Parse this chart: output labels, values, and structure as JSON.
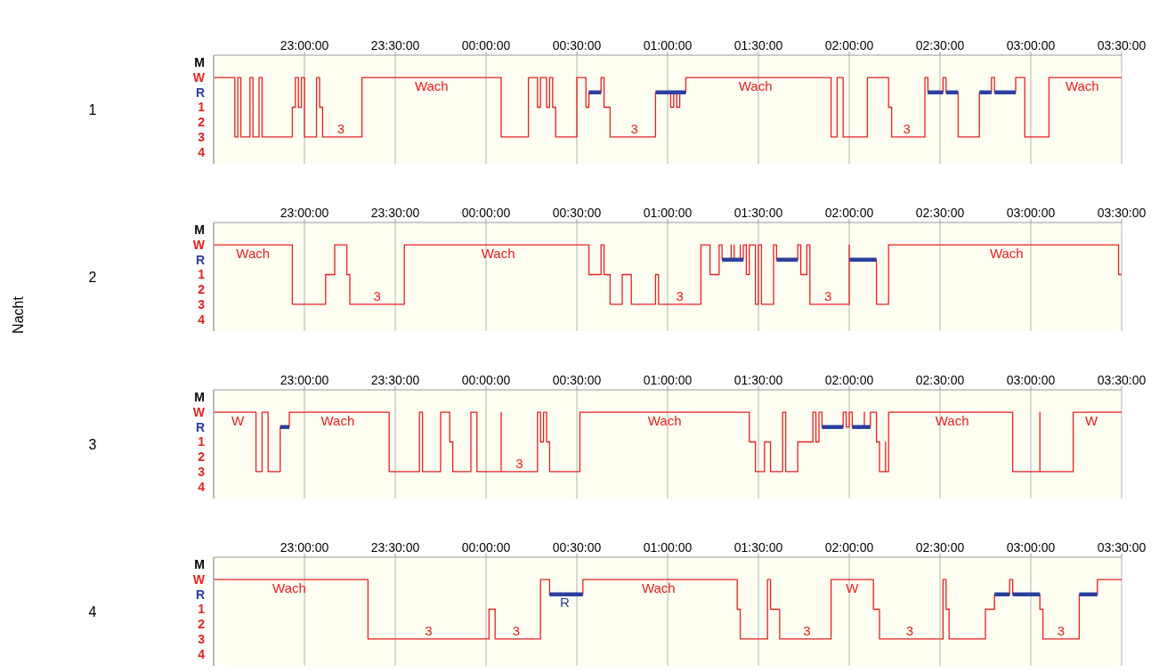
{
  "chart_data": [
    {
      "type": "step",
      "ylabel": "1",
      "xlim": [
        "2000-01-01T22:30",
        "2000-01-02T03:30"
      ],
      "xticks": [
        {
          "value": "2000-01-01T23:00",
          "label": "23:00:00"
        },
        {
          "value": "2000-01-01T23:30",
          "label": "23:30:00"
        },
        {
          "value": "2000-01-02T00:00",
          "label": "00:00:00"
        },
        {
          "value": "2000-01-02T00:30",
          "label": "00:30:00"
        },
        {
          "value": "2000-01-02T01:00",
          "label": "01:00:00"
        },
        {
          "value": "2000-01-02T01:30",
          "label": "01:30:00"
        },
        {
          "value": "2000-01-02T02:00",
          "label": "02:00:00"
        },
        {
          "value": "2000-01-02T02:30",
          "label": "02:30:00"
        },
        {
          "value": "2000-01-02T03:00",
          "label": "03:00:00"
        },
        {
          "value": "2000-01-02T03:30",
          "label": "03:30:00"
        }
      ],
      "ylim": [
        4.8,
        -2.5
      ],
      "yticks": [
        {
          "value": -2,
          "label": "M"
        },
        {
          "value": -1,
          "label": "W"
        },
        {
          "value": 0,
          "label": "R"
        },
        1,
        2,
        3,
        4
      ],
      "grid": "x",
      "series": [
        {
          "color": "#e82020",
          "x": [
            "2000-01-01T22:30",
            "2000-01-01T22:37",
            "2000-01-01T22:38",
            "2000-01-01T22:39",
            "2000-01-01T22:42",
            "2000-01-01T22:43",
            "2000-01-01T22:45",
            "2000-01-01T22:46",
            "2000-01-01T22:56",
            "2000-01-01T22:57",
            "2000-01-01T22:58",
            "2000-01-01T22:59",
            "2000-01-01T23:00",
            "2000-01-01T23:04",
            "2000-01-01T23:05",
            "2000-01-01T23:06",
            "2000-01-01T23:19",
            "2000-01-02T00:05",
            "2000-01-02T00:14",
            "2000-01-02T00:17",
            "2000-01-02T00:18",
            "2000-01-02T00:20",
            "2000-01-02T00:21",
            "2000-01-02T00:22",
            "2000-01-02T00:23",
            "2000-01-02T00:30",
            "2000-01-02T00:33",
            "2000-01-02T00:34",
            "2000-01-02T00:38",
            "2000-01-02T00:39",
            "2000-01-02T00:41",
            "2000-01-02T00:56",
            "2000-01-02T01:01",
            "2000-01-02T01:02",
            "2000-01-02T01:03",
            "2000-01-02T01:04",
            "2000-01-02T01:06",
            "2000-01-02T01:54",
            "2000-01-02T01:56",
            "2000-01-02T01:58",
            "2000-01-02T02:06",
            "2000-01-02T02:13",
            "2000-01-02T02:14",
            "2000-01-02T02:25",
            "2000-01-02T02:26",
            "2000-01-02T02:31",
            "2000-01-02T02:32",
            "2000-01-02T02:36",
            "2000-01-02T02:43",
            "2000-01-02T02:47",
            "2000-01-02T02:48",
            "2000-01-02T02:55",
            "2000-01-02T02:58",
            "2000-01-02T03:06",
            "2000-01-02T03:30"
          ],
          "values": [
            -1,
            3,
            -1,
            3,
            -1,
            3,
            -1,
            3,
            1,
            -1,
            1,
            -1,
            3,
            -1,
            1,
            3,
            -1,
            3,
            -1,
            1,
            -1,
            1,
            -1,
            1,
            3,
            -1,
            1,
            0,
            -1,
            1,
            3,
            0,
            1,
            0,
            1,
            0,
            -1,
            3,
            -1,
            3,
            -1,
            1,
            3,
            -1,
            0,
            -1,
            0,
            3,
            0,
            -1,
            0,
            -1,
            3,
            -1,
            -1
          ]
        },
        {
          "type": "line",
          "color": "#2b3fa0",
          "x": [
            "2000-01-02T00:34",
            "2000-01-02T00:38"
          ],
          "values": [
            0,
            0
          ]
        },
        {
          "type": "line",
          "color": "#2b3fa0",
          "x": [
            "2000-01-02T00:56",
            "2000-01-02T01:06"
          ],
          "values": [
            0,
            0
          ]
        },
        {
          "type": "line",
          "color": "#2b3fa0",
          "x": [
            "2000-01-02T02:26",
            "2000-01-02T02:31"
          ],
          "values": [
            0,
            0
          ]
        },
        {
          "type": "line",
          "color": "#2b3fa0",
          "x": [
            "2000-01-02T02:32",
            "2000-01-02T02:36"
          ],
          "values": [
            0,
            0
          ]
        },
        {
          "type": "line",
          "color": "#2b3fa0",
          "x": [
            "2000-01-02T02:43",
            "2000-01-02T02:47"
          ],
          "values": [
            0,
            0
          ]
        },
        {
          "type": "line",
          "color": "#2b3fa0",
          "x": [
            "2000-01-02T02:48",
            "2000-01-02T02:55"
          ],
          "values": [
            0,
            0
          ]
        }
      ],
      "annotations": [
        {
          "text": "Wach",
          "x": "2000-01-01T23:42",
          "y": -1
        },
        {
          "text": "3",
          "x": "2000-01-01T23:12",
          "y": 3
        },
        {
          "text": "3",
          "x": "2000-01-02T00:49",
          "y": 3
        },
        {
          "text": "Wach",
          "x": "2000-01-02T01:29",
          "y": -1
        },
        {
          "text": "3",
          "x": "2000-01-02T02:19",
          "y": 3
        },
        {
          "text": "Wach",
          "x": "2000-01-02T03:17",
          "y": -1
        }
      ]
    },
    {
      "type": "step",
      "ylabel": "2",
      "xlim": [
        "2000-01-01T22:30",
        "2000-01-02T03:30"
      ],
      "xticks": [
        {
          "value": "2000-01-01T23:00",
          "label": "23:00:00"
        },
        {
          "value": "2000-01-01T23:30",
          "label": "23:30:00"
        },
        {
          "value": "2000-01-02T00:00",
          "label": "00:00:00"
        },
        {
          "value": "2000-01-02T00:30",
          "label": "00:30:00"
        },
        {
          "value": "2000-01-02T01:00",
          "label": "01:00:00"
        },
        {
          "value": "2000-01-02T01:30",
          "label": "01:30:00"
        },
        {
          "value": "2000-01-02T02:00",
          "label": "02:00:00"
        },
        {
          "value": "2000-01-02T02:30",
          "label": "02:30:00"
        },
        {
          "value": "2000-01-02T03:00",
          "label": "03:00:00"
        },
        {
          "value": "2000-01-02T03:30",
          "label": "03:30:00"
        }
      ],
      "ylim": [
        4.8,
        -2.5
      ],
      "yticks": [
        {
          "value": -2,
          "label": "M"
        },
        {
          "value": -1,
          "label": "W"
        },
        {
          "value": 0,
          "label": "R"
        },
        1,
        2,
        3,
        4
      ],
      "grid": "x",
      "series": [
        {
          "color": "#e82020",
          "x": [
            "2000-01-01T22:30",
            "2000-01-01T22:56",
            "2000-01-01T23:07",
            "2000-01-01T23:10",
            "2000-01-01T23:14",
            "2000-01-01T23:15",
            "2000-01-01T23:33",
            "2000-01-02T00:34",
            "2000-01-02T00:38",
            "2000-01-02T00:39",
            "2000-01-02T00:41",
            "2000-01-02T00:45",
            "2000-01-02T00:48",
            "2000-01-02T00:56",
            "2000-01-02T00:57",
            "2000-01-02T01:11",
            "2000-01-02T01:14",
            "2000-01-02T01:17",
            "2000-01-02T01:18",
            "2000-01-02T01:21",
            "2000-01-02T01:21",
            "2000-01-02T01:22",
            "2000-01-02T01:22",
            "2000-01-02T01:24",
            "2000-01-02T01:24",
            "2000-01-02T01:25",
            "2000-01-02T01:26",
            "2000-01-02T01:27",
            "2000-01-02T01:29",
            "2000-01-02T01:30",
            "2000-01-02T01:31",
            "2000-01-02T01:35",
            "2000-01-02T01:36",
            "2000-01-02T01:43",
            "2000-01-02T01:44",
            "2000-01-02T01:46",
            "2000-01-02T01:47",
            "2000-01-02T02:00",
            "2000-01-02T02:00",
            "2000-01-02T02:09",
            "2000-01-02T02:13",
            "2000-01-02T03:29",
            "2000-01-02T03:30"
          ],
          "values": [
            -1,
            3,
            1,
            -1,
            1,
            3,
            -1,
            1,
            -1,
            1,
            3,
            1,
            3,
            1,
            3,
            -1,
            1,
            -1,
            0,
            -1,
            0,
            -1,
            0,
            -1,
            0,
            -1,
            1,
            -1,
            3,
            -1,
            3,
            -1,
            0,
            -1,
            1,
            -1,
            3,
            -1,
            0,
            3,
            -1,
            1,
            1
          ]
        },
        {
          "type": "line",
          "color": "#2b3fa0",
          "x": [
            "2000-01-02T01:18",
            "2000-01-02T01:25"
          ],
          "values": [
            0,
            0
          ]
        },
        {
          "type": "line",
          "color": "#2b3fa0",
          "x": [
            "2000-01-02T01:36",
            "2000-01-02T01:43"
          ],
          "values": [
            0,
            0
          ]
        },
        {
          "type": "line",
          "color": "#2b3fa0",
          "x": [
            "2000-01-02T02:00",
            "2000-01-02T02:09"
          ],
          "values": [
            0,
            0
          ]
        }
      ],
      "annotations": [
        "Nacht",
        {
          "text": "Wach",
          "x": "2000-01-01T22:43",
          "y": -1
        },
        {
          "text": "3",
          "x": "2000-01-01T23:24",
          "y": 3
        },
        {
          "text": "Wach",
          "x": "2000-01-02T00:04",
          "y": -1
        },
        {
          "text": "3",
          "x": "2000-01-02T01:04",
          "y": 3
        },
        {
          "text": "3",
          "x": "2000-01-02T01:53",
          "y": 3
        },
        {
          "text": "Wach",
          "x": "2000-01-02T02:52",
          "y": -1
        }
      ]
    },
    {
      "type": "step",
      "ylabel": "3",
      "xlim": [
        "2000-01-01T22:30",
        "2000-01-02T03:30"
      ],
      "xticks": [
        {
          "value": "2000-01-01T23:00",
          "label": "23:00:00"
        },
        {
          "value": "2000-01-01T23:30",
          "label": "23:30:00"
        },
        {
          "value": "2000-01-02T00:00",
          "label": "00:00:00"
        },
        {
          "value": "2000-01-02T00:30",
          "label": "00:30:00"
        },
        {
          "value": "2000-01-02T01:00",
          "label": "01:00:00"
        },
        {
          "value": "2000-01-02T01:30",
          "label": "01:30:00"
        },
        {
          "value": "2000-01-02T02:00",
          "label": "02:00:00"
        },
        {
          "value": "2000-01-02T02:30",
          "label": "02:30:00"
        },
        {
          "value": "2000-01-02T03:00",
          "label": "03:00:00"
        },
        {
          "value": "2000-01-02T03:30",
          "label": "03:30:00"
        }
      ],
      "ylim": [
        4.8,
        -2.5
      ],
      "yticks": [
        {
          "value": -2,
          "label": "M"
        },
        {
          "value": -1,
          "label": "W"
        },
        {
          "value": 0,
          "label": "R"
        },
        1,
        2,
        3,
        4
      ],
      "grid": "x",
      "series": [
        {
          "color": "#e82020",
          "x": [
            "2000-01-01T22:30",
            "2000-01-01T22:44",
            "2000-01-01T22:46",
            "2000-01-01T22:48",
            "2000-01-01T22:52",
            "2000-01-01T22:55",
            "2000-01-01T23:28",
            "2000-01-01T23:38",
            "2000-01-01T23:39",
            "2000-01-01T23:45",
            "2000-01-01T23:48",
            "2000-01-01T23:49",
            "2000-01-01T23:55",
            "2000-01-01T23:57",
            "2000-01-02T00:05",
            "2000-01-02T00:05",
            "2000-01-02T00:17",
            "2000-01-02T00:18",
            "2000-01-02T00:19",
            "2000-01-02T00:20",
            "2000-01-02T00:21",
            "2000-01-02T00:31",
            "2000-01-02T01:27",
            "2000-01-02T01:29",
            "2000-01-02T01:32",
            "2000-01-02T01:34",
            "2000-01-02T01:38",
            "2000-01-02T01:39",
            "2000-01-02T01:43",
            "2000-01-02T01:48",
            "2000-01-02T01:49",
            "2000-01-02T01:50",
            "2000-01-02T01:51",
            "2000-01-02T01:58",
            "2000-01-02T01:59",
            "2000-01-02T02:00",
            "2000-01-02T02:01",
            "2000-01-02T02:05",
            "2000-01-02T02:05",
            "2000-01-02T02:07",
            "2000-01-02T02:09",
            "2000-01-02T02:10",
            "2000-01-02T02:12",
            "2000-01-02T02:12",
            "2000-01-02T02:13",
            "2000-01-02T02:54",
            "2000-01-02T03:03",
            "2000-01-02T03:03",
            "2000-01-02T03:14",
            "2000-01-02T03:30"
          ],
          "values": [
            -1,
            3,
            -1,
            3,
            0,
            -1,
            3,
            -1,
            3,
            -1,
            1,
            3,
            -1,
            3,
            -1,
            3,
            -1,
            1,
            -1,
            1,
            3,
            -1,
            1,
            3,
            1,
            3,
            -1,
            3,
            1,
            -1,
            1,
            -1,
            0,
            -1,
            0,
            -1,
            0,
            -1,
            0,
            -1,
            1,
            3,
            1,
            3,
            -1,
            3,
            -1,
            3,
            -1,
            -1
          ]
        },
        {
          "type": "line",
          "color": "#2b3fa0",
          "x": [
            "2000-01-01T22:52",
            "2000-01-01T22:55"
          ],
          "values": [
            0,
            0
          ]
        },
        {
          "type": "line",
          "color": "#2b3fa0",
          "x": [
            "2000-01-02T01:51",
            "2000-01-02T01:58"
          ],
          "values": [
            0,
            0
          ]
        },
        {
          "type": "line",
          "color": "#2b3fa0",
          "x": [
            "2000-01-02T02:01",
            "2000-01-02T02:07"
          ],
          "values": [
            0,
            0
          ]
        }
      ],
      "annotations": [
        {
          "text": "W",
          "x": "2000-01-01T22:38",
          "y": -1
        },
        {
          "text": "Wach",
          "x": "2000-01-01T23:11",
          "y": -1
        },
        {
          "text": "3",
          "x": "2000-01-02T00:11",
          "y": 3
        },
        {
          "text": "Wach",
          "x": "2000-01-02T00:59",
          "y": -1
        },
        {
          "text": "Wach",
          "x": "2000-01-02T02:34",
          "y": -1
        },
        {
          "text": "W",
          "x": "2000-01-02T03:20",
          "y": -1
        }
      ]
    },
    {
      "type": "step",
      "ylabel": "4",
      "xlim": [
        "2000-01-01T22:30",
        "2000-01-02T03:30"
      ],
      "xticks": [
        {
          "value": "2000-01-01T23:00",
          "label": "23:00:00"
        },
        {
          "value": "2000-01-01T23:30",
          "label": "23:30:00"
        },
        {
          "value": "2000-01-02T00:00",
          "label": "00:00:00"
        },
        {
          "value": "2000-01-02T00:30",
          "label": "00:30:00"
        },
        {
          "value": "2000-01-02T01:00",
          "label": "01:00:00"
        },
        {
          "value": "2000-01-02T01:30",
          "label": "01:30:00"
        },
        {
          "value": "2000-01-02T02:00",
          "label": "02:00:00"
        },
        {
          "value": "2000-01-02T02:30",
          "label": "02:30:00"
        },
        {
          "value": "2000-01-02T03:00",
          "label": "03:00:00"
        },
        {
          "value": "2000-01-02T03:30",
          "label": "03:30:00"
        }
      ],
      "ylim": [
        4.8,
        -2.5
      ],
      "yticks": [
        {
          "value": -2,
          "label": "M"
        },
        {
          "value": -1,
          "label": "W"
        },
        {
          "value": 0,
          "label": "R"
        },
        1,
        2,
        3,
        4
      ],
      "grid": "x",
      "series": [
        {
          "color": "#e82020",
          "x": [
            "2000-01-01T22:30",
            "2000-01-01T23:21",
            "2000-01-02T00:01",
            "2000-01-02T00:03",
            "2000-01-02T00:18",
            "2000-01-02T00:21",
            "2000-01-02T00:32",
            "2000-01-02T01:23",
            "2000-01-02T01:24",
            "2000-01-02T01:33",
            "2000-01-02T01:34",
            "2000-01-02T01:37",
            "2000-01-02T01:54",
            "2000-01-02T02:08",
            "2000-01-02T02:10",
            "2000-01-02T02:31",
            "2000-01-02T02:32",
            "2000-01-02T02:33",
            "2000-01-02T02:45",
            "2000-01-02T02:48",
            "2000-01-02T02:53",
            "2000-01-02T02:54",
            "2000-01-02T03:03",
            "2000-01-02T03:04",
            "2000-01-02T03:16",
            "2000-01-02T03:22",
            "2000-01-02T03:30"
          ],
          "values": [
            -1,
            3,
            1,
            3,
            -1,
            0,
            -1,
            1,
            3,
            -1,
            1,
            3,
            -1,
            1,
            3,
            -1,
            1,
            3,
            1,
            0,
            -1,
            0,
            1,
            3,
            0,
            -1,
            -1
          ]
        },
        {
          "type": "line",
          "color": "#2b3fa0",
          "x": [
            "2000-01-02T00:21",
            "2000-01-02T00:32"
          ],
          "values": [
            0,
            0
          ]
        },
        {
          "type": "line",
          "color": "#2b3fa0",
          "x": [
            "2000-01-02T02:48",
            "2000-01-02T02:53"
          ],
          "values": [
            0,
            0
          ]
        },
        {
          "type": "line",
          "color": "#2b3fa0",
          "x": [
            "2000-01-02T02:54",
            "2000-01-02T03:03"
          ],
          "values": [
            0,
            0
          ]
        },
        {
          "type": "line",
          "color": "#2b3fa0",
          "x": [
            "2000-01-02T03:16",
            "2000-01-02T03:22"
          ],
          "values": [
            0,
            0
          ]
        }
      ],
      "annotations": [
        {
          "text": "Wach",
          "x": "2000-01-01T22:55",
          "y": -1
        },
        {
          "text": "3",
          "x": "2000-01-01T23:41",
          "y": 3
        },
        {
          "text": "3",
          "x": "2000-01-02T00:10",
          "y": 3
        },
        {
          "text": "R",
          "x": "2000-01-02T00:26",
          "y": 0
        },
        {
          "text": "Wach",
          "x": "2000-01-02T00:57",
          "y": -1
        },
        {
          "text": "3",
          "x": "2000-01-02T01:46",
          "y": 3
        },
        {
          "text": "W",
          "x": "2000-01-02T02:01",
          "y": -1
        },
        {
          "text": "3",
          "x": "2000-01-02T02:20",
          "y": 3
        },
        {
          "text": "3",
          "x": "2000-01-02T03:10",
          "y": 3
        }
      ]
    }
  ]
}
